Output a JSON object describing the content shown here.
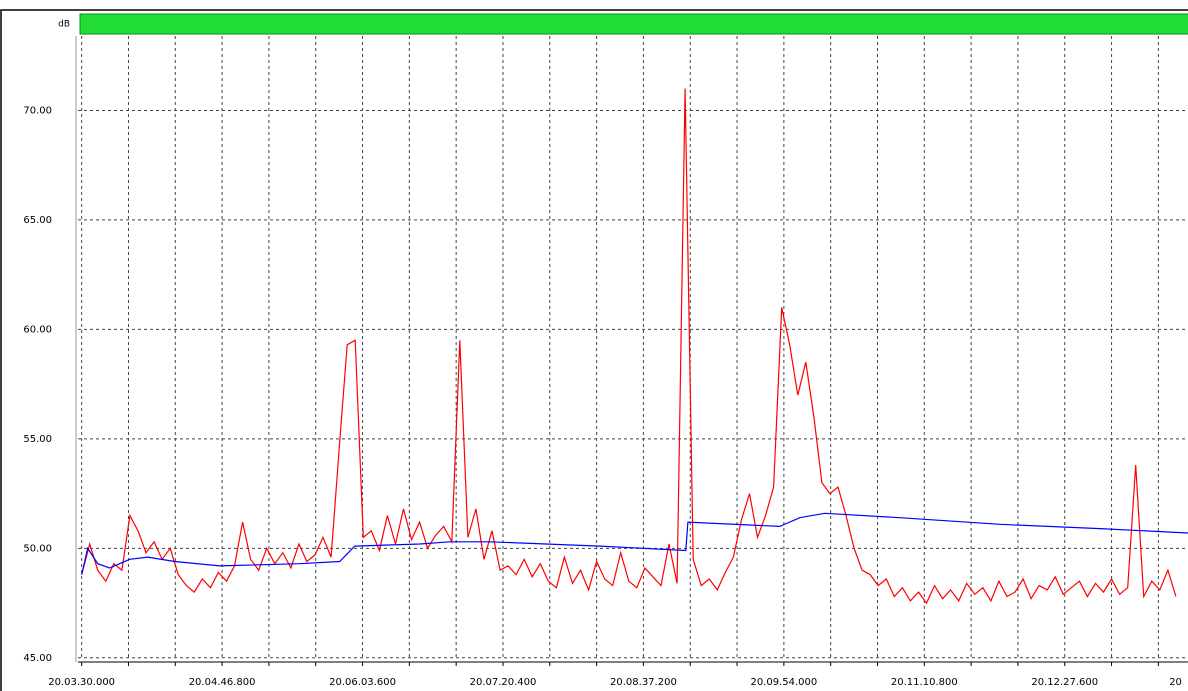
{
  "chart_data": {
    "type": "line",
    "ylabel": "dB",
    "xlim": [
      -2,
      605
    ],
    "ylim": [
      44.9,
      73.4
    ],
    "yticks": [
      {
        "value": 45,
        "label": "45.00"
      },
      {
        "value": 50,
        "label": "50.00"
      },
      {
        "value": 55,
        "label": "55.00"
      },
      {
        "value": 60,
        "label": "60.00"
      },
      {
        "value": 65,
        "label": "65.00"
      },
      {
        "value": 70,
        "label": "70.00"
      }
    ],
    "xticks": [
      {
        "value": 0,
        "label": "20.03.30.000"
      },
      {
        "value": 76.8,
        "label": "20.04.46.800"
      },
      {
        "value": 153.6,
        "label": "20.06.03.600"
      },
      {
        "value": 230.4,
        "label": "20.07.20.400"
      },
      {
        "value": 307.2,
        "label": "20.08.37.200"
      },
      {
        "value": 384,
        "label": "20.09.54.000"
      },
      {
        "value": 460.8,
        "label": "20.11.10.800"
      },
      {
        "value": 537.6,
        "label": "20.12.27.600"
      },
      {
        "value": 614.4,
        "label": "20"
      }
    ],
    "xminorticks": [
      25.6,
      51.2,
      102.4,
      128,
      179.2,
      204.8,
      256,
      281.6,
      332.8,
      358.4,
      409.6,
      435.2,
      486.4,
      512,
      563.2,
      588.8
    ],
    "grid": true,
    "series": [
      {
        "color": "#ff0000",
        "x": [
          0,
          4.4,
          8.8,
          13.2,
          17.6,
          22,
          26.4,
          30.8,
          35.2,
          39.6,
          44,
          48.4,
          52.8,
          57.2,
          61.6,
          66,
          70.4,
          74.8,
          79.2,
          83.6,
          88,
          92.4,
          96.8,
          101.2,
          105.6,
          110,
          114.4,
          118.8,
          123.2,
          127.6,
          132,
          136.4,
          140.8,
          145.2,
          149.6,
          154,
          158.4,
          162.8,
          167.2,
          171.6,
          176,
          180.4,
          184.8,
          189.2,
          193.6,
          198,
          202.4,
          206.8,
          211.2,
          215.6,
          220,
          224.4,
          228.8,
          233.2,
          237.6,
          242,
          246.4,
          250.8,
          255.2,
          259.6,
          264,
          268.4,
          272.8,
          277.2,
          281.6,
          286,
          290.4,
          294.8,
          299.2,
          303.6,
          308,
          312.4,
          316.8,
          321.2,
          325.6,
          330,
          334.4,
          338.8,
          343.2,
          347.6,
          352,
          356.4,
          360.8,
          365.2,
          369.6,
          374,
          378.4,
          382.8,
          387.2,
          391.6,
          396,
          400.4,
          404.8,
          409.2,
          413.6,
          418,
          422.4,
          426.8,
          431.2,
          435.6,
          440,
          444.4,
          448.8,
          453.2,
          457.6,
          462,
          466.4,
          470.8,
          475.2,
          479.6,
          484,
          488.4,
          492.8,
          497.2,
          501.6,
          506,
          510.4,
          514.8,
          519.2,
          523.6,
          528,
          532.4,
          536.8,
          541.2,
          545.6,
          550,
          554.4,
          558.8,
          563.2,
          567.6,
          572,
          576.4,
          580.8,
          585.2,
          589.6,
          594,
          598.4
        ],
        "values": [
          48.8,
          50.2,
          49.0,
          48.5,
          49.3,
          49.0,
          51.5,
          50.8,
          49.8,
          50.3,
          49.5,
          50.0,
          48.8,
          48.3,
          48.0,
          48.6,
          48.2,
          48.9,
          48.5,
          49.2,
          51.2,
          49.5,
          49.0,
          50.0,
          49.3,
          49.8,
          49.1,
          50.2,
          49.4,
          49.7,
          50.5,
          49.6,
          54.5,
          59.3,
          59.5,
          50.5,
          50.8,
          49.9,
          51.5,
          50.2,
          51.8,
          50.4,
          51.2,
          50.0,
          50.6,
          51.0,
          50.3,
          59.5,
          50.5,
          51.8,
          49.5,
          50.8,
          49.0,
          49.2,
          48.8,
          49.5,
          48.7,
          49.3,
          48.5,
          48.2,
          49.6,
          48.4,
          49.0,
          48.1,
          49.4,
          48.6,
          48.3,
          49.8,
          48.5,
          48.2,
          49.1,
          48.7,
          48.3,
          50.2,
          48.4,
          71.0,
          49.5,
          48.3,
          48.6,
          48.1,
          48.9,
          49.6,
          51.3,
          52.5,
          50.5,
          51.5,
          52.8,
          61.0,
          59.3,
          57.0,
          58.5,
          56.0,
          53.0,
          52.5,
          52.8,
          51.5,
          50.0,
          49.0,
          48.8,
          48.3,
          48.6,
          47.8,
          48.2,
          47.6,
          48.0,
          47.5,
          48.3,
          47.7,
          48.1,
          47.6,
          48.4,
          47.9,
          48.2,
          47.6,
          48.5,
          47.8,
          48.0,
          48.6,
          47.7,
          48.3,
          48.1,
          48.7,
          47.9,
          48.2,
          48.5,
          47.8,
          48.4,
          48.0,
          48.6,
          47.9,
          48.2,
          53.8,
          47.8,
          48.5,
          48.1,
          49.0,
          47.8
        ]
      },
      {
        "color": "#0000ff",
        "x": [
          0,
          3.3,
          8.8,
          15.3,
          26.3,
          36.1,
          50.9,
          75.5,
          119.2,
          141.1,
          149.3,
          184.9,
          201.3,
          223.2,
          283.3,
          330.4,
          331.5,
          381.8,
          392.7,
          406.4,
          447.4,
          502.1,
          556.8,
          605
        ],
        "values": [
          48.8,
          50.0,
          49.3,
          49.1,
          49.5,
          49.6,
          49.4,
          49.2,
          49.3,
          49.4,
          50.1,
          50.2,
          50.3,
          50.3,
          50.1,
          49.9,
          51.2,
          51.0,
          51.4,
          51.6,
          51.4,
          51.1,
          50.9,
          50.7
        ]
      }
    ]
  }
}
